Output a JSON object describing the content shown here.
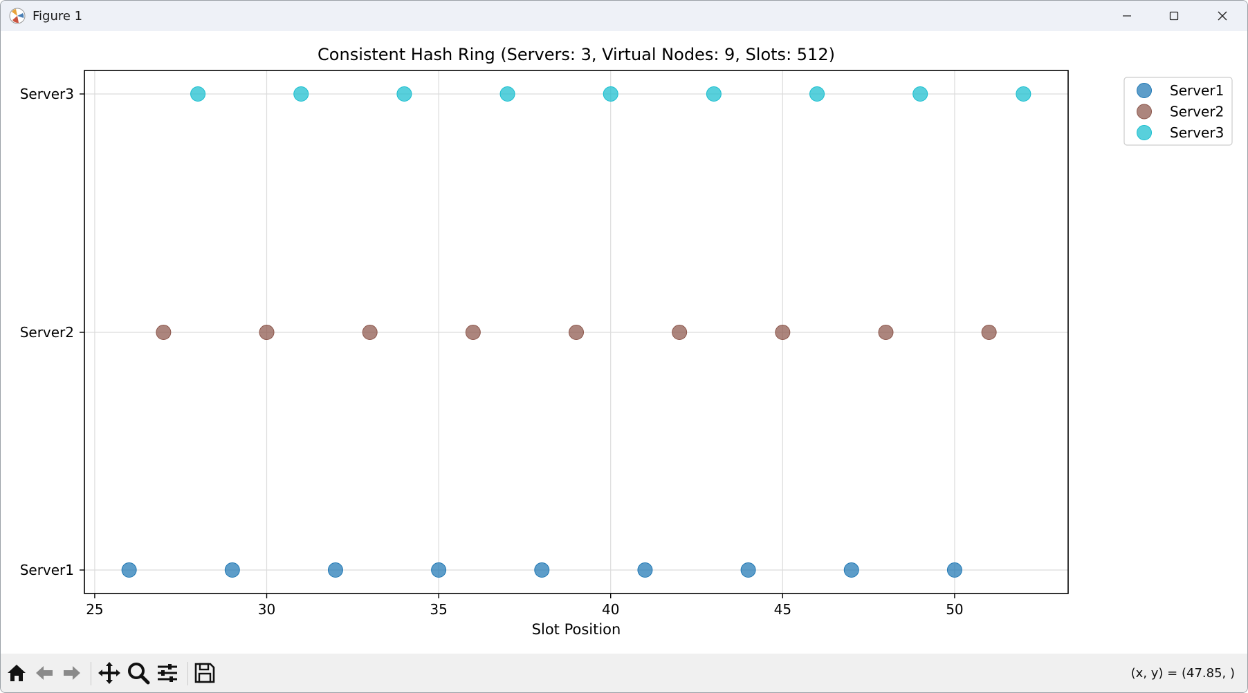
{
  "window": {
    "title": "Figure 1",
    "controls": [
      "minimize-icon",
      "maximize-icon",
      "close-icon"
    ]
  },
  "toolbar": {
    "buttons": [
      "home-icon",
      "back-icon",
      "forward-icon",
      "pan-icon",
      "zoom-icon",
      "configure-subplots-icon",
      "save-icon"
    ],
    "coordinates": "(x, y) = (47.85, )"
  },
  "colors": {
    "Server1": "#1f77b4",
    "Server2": "#8c564b",
    "Server3": "#17becf"
  },
  "chart_data": {
    "type": "scatter",
    "title": "Consistent Hash Ring (Servers: 3, Virtual Nodes: 9, Slots: 512)",
    "xlabel": "Slot Position",
    "ylabel": "",
    "categories": [
      "Server1",
      "Server2",
      "Server3"
    ],
    "xlim": [
      24.7,
      53.3
    ],
    "xticks": [
      25,
      30,
      35,
      40,
      45,
      50
    ],
    "grid": true,
    "legend_position": "upper-right-outside",
    "series": [
      {
        "name": "Server1",
        "x": [
          26,
          29,
          32,
          35,
          38,
          41,
          44,
          47,
          50
        ],
        "y": "Server1"
      },
      {
        "name": "Server2",
        "x": [
          27,
          30,
          33,
          36,
          39,
          42,
          45,
          48,
          51
        ],
        "y": "Server2"
      },
      {
        "name": "Server3",
        "x": [
          28,
          31,
          34,
          37,
          40,
          43,
          46,
          49,
          52
        ],
        "y": "Server3"
      }
    ]
  }
}
